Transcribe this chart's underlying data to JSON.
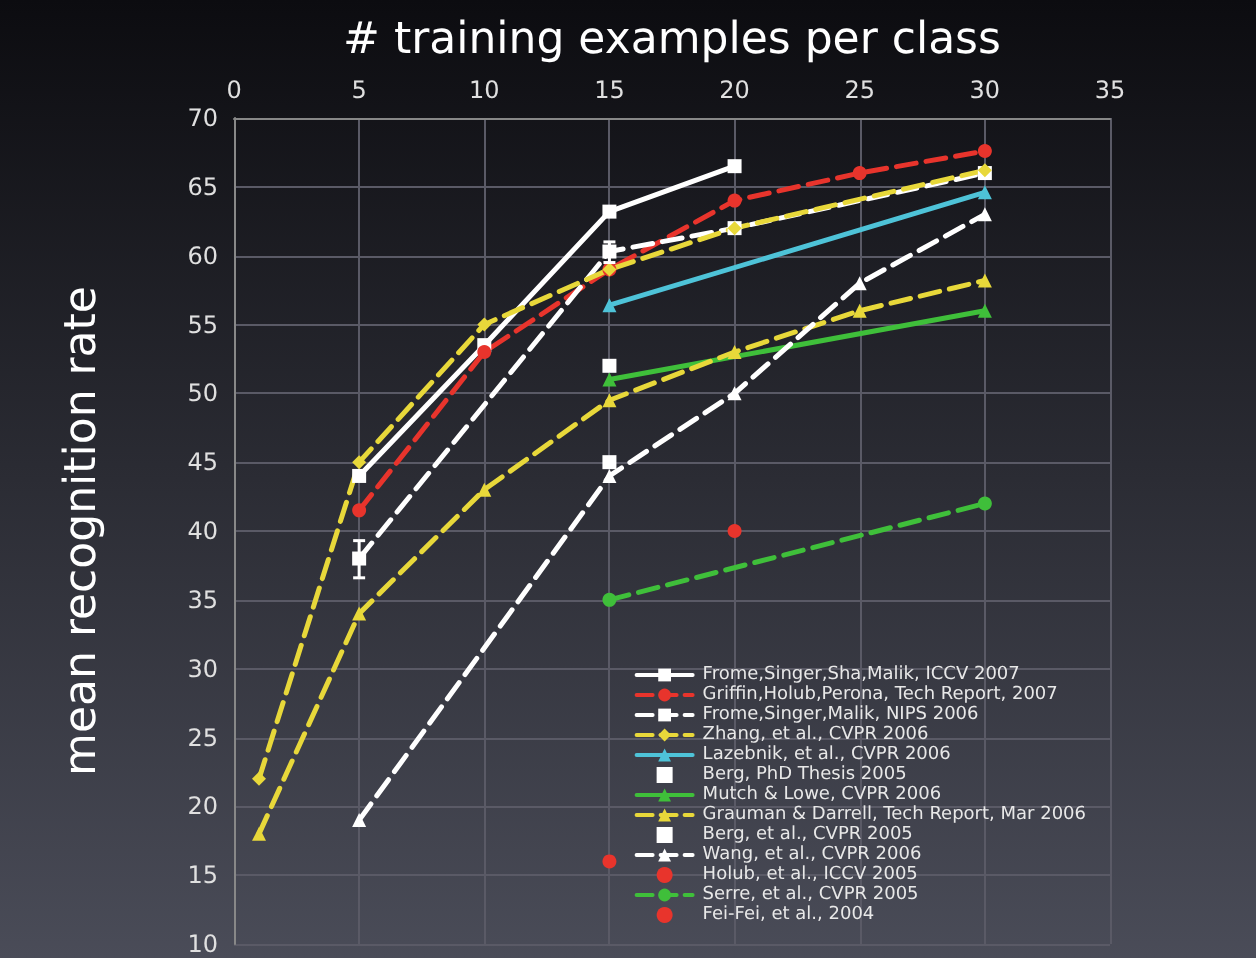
{
  "chart_data": {
    "type": "line",
    "xlabel": "# training examples per class",
    "ylabel": "mean recognition rate",
    "xlim": [
      0,
      35
    ],
    "xticks": [
      0,
      5,
      10,
      15,
      20,
      25,
      30,
      35
    ],
    "ylim": [
      10,
      70
    ],
    "yticks": [
      10,
      15,
      20,
      25,
      30,
      35,
      40,
      45,
      50,
      55,
      60,
      65,
      70
    ],
    "grid": true,
    "legend": "bottom right",
    "series": [
      {
        "name": "Frome,Singer,Sha,Malik, ICCV 2007",
        "color": "#ffffff",
        "line_style": "solid",
        "marker": "square",
        "x": [
          5,
          10,
          15,
          20
        ],
        "values": [
          44,
          53.5,
          63.2,
          66.5
        ]
      },
      {
        "name": "Griffin,Holub,Perona, Tech Report, 2007",
        "color": "#e8342c",
        "line_style": "dashed",
        "marker": "circle",
        "x": [
          5,
          10,
          15,
          20,
          25,
          30
        ],
        "values": [
          41.5,
          53,
          59,
          64,
          66,
          67.6
        ]
      },
      {
        "name": "Frome,Singer,Malik, NIPS 2006",
        "color": "#ffffff",
        "line_style": "dashed",
        "marker": "square",
        "x": [
          5,
          15,
          20,
          30
        ],
        "values": [
          38,
          60.3,
          62,
          66
        ],
        "errors": [
          [
            36.6,
            39.3
          ],
          [
            59.5,
            61
          ],
          null,
          null
        ]
      },
      {
        "name": "Zhang, et al., CVPR 2006",
        "color": "#e8d83a",
        "line_style": "dashed",
        "marker": "diamond",
        "x": [
          1,
          5,
          10,
          15,
          20,
          30
        ],
        "values": [
          22,
          45,
          55,
          59,
          62,
          66.2
        ]
      },
      {
        "name": "Lazebnik, et al., CVPR 2006",
        "color": "#4ec3d8",
        "line_style": "solid",
        "marker": "triangle",
        "x": [
          15,
          30
        ],
        "values": [
          56.4,
          64.6
        ]
      },
      {
        "name": "Berg, PhD Thesis 2005",
        "type": "scatter",
        "color": "#ffffff",
        "marker": "square",
        "x": [
          15
        ],
        "values": [
          52
        ]
      },
      {
        "name": "Mutch & Lowe, CVPR 2006",
        "color": "#3fbf3a",
        "line_style": "solid",
        "marker": "triangle",
        "x": [
          15,
          30
        ],
        "values": [
          51,
          56
        ]
      },
      {
        "name": "Grauman & Darrell, Tech Report, Mar 2006",
        "color": "#e8d83a",
        "line_style": "dashed",
        "marker": "triangle",
        "x": [
          1,
          5,
          10,
          15,
          20,
          25,
          30
        ],
        "values": [
          18,
          34,
          43,
          49.5,
          53,
          56,
          58.2
        ]
      },
      {
        "name": "Berg, et al., CVPR 2005",
        "type": "scatter",
        "color": "#ffffff",
        "marker": "square",
        "x": [
          15
        ],
        "values": [
          45
        ]
      },
      {
        "name": "Wang, et al., CVPR 2006",
        "color": "#ffffff",
        "line_style": "dashed",
        "marker": "triangle",
        "x": [
          5,
          15,
          20,
          25,
          30
        ],
        "values": [
          19,
          44,
          50,
          58,
          63
        ]
      },
      {
        "name": "Holub, et al., ICCV 2005",
        "type": "scatter",
        "color": "#e8342c",
        "marker": "circle",
        "x": [
          20
        ],
        "values": [
          40
        ]
      },
      {
        "name": "Serre, et al., CVPR 2005",
        "color": "#3fbf3a",
        "line_style": "dashed",
        "marker": "circle",
        "x": [
          15,
          30
        ],
        "values": [
          35,
          42
        ]
      },
      {
        "name": "Fei-Fei, et al., 2004",
        "type": "scatter",
        "color": "#e8342c",
        "marker": "circle",
        "x": [
          15
        ],
        "values": [
          16
        ]
      }
    ]
  }
}
